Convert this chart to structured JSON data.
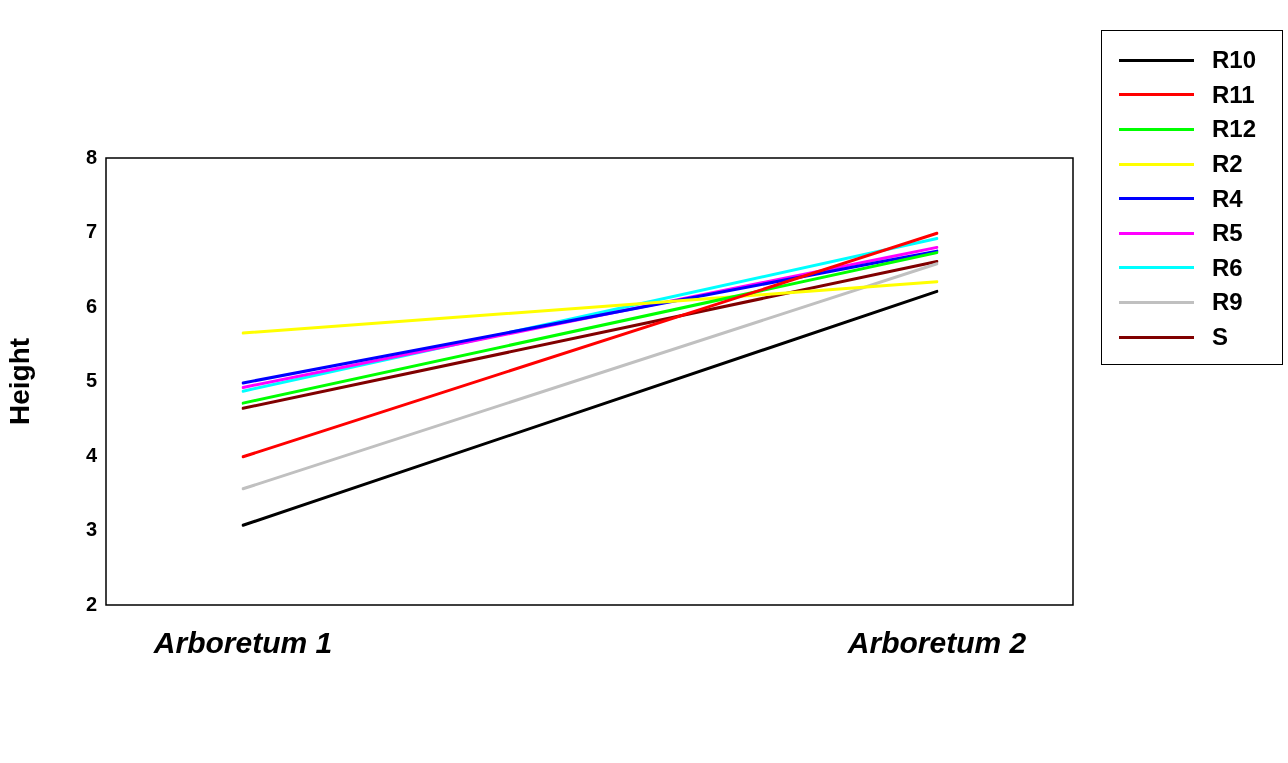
{
  "chart_data": {
    "type": "line",
    "ylabel": "Height",
    "categories": [
      "Arboretum 1",
      "Arboretum 2"
    ],
    "ylim": [
      2,
      8
    ],
    "yticks": [
      2,
      3,
      4,
      5,
      6,
      7,
      8
    ],
    "grid": false,
    "legend": "right",
    "marker": "none",
    "line_style": "solid",
    "series": [
      {
        "name": "R10",
        "color": "#000000",
        "values": [
          3.07,
          6.21
        ]
      },
      {
        "name": "R11",
        "color": "#ff0000",
        "values": [
          3.99,
          6.99
        ]
      },
      {
        "name": "R12",
        "color": "#00ff00",
        "values": [
          4.71,
          6.73
        ]
      },
      {
        "name": "R2",
        "color": "#ffff00",
        "values": [
          5.65,
          6.34
        ]
      },
      {
        "name": "R4",
        "color": "#0000ff",
        "values": [
          4.98,
          6.75
        ]
      },
      {
        "name": "R5",
        "color": "#ff00ff",
        "values": [
          4.92,
          6.8
        ]
      },
      {
        "name": "R6",
        "color": "#00ffff",
        "values": [
          4.87,
          6.92
        ]
      },
      {
        "name": "R9",
        "color": "#c0c0c0",
        "values": [
          3.56,
          6.58
        ]
      },
      {
        "name": "S",
        "color": "#800000",
        "values": [
          4.64,
          6.61
        ]
      }
    ]
  }
}
